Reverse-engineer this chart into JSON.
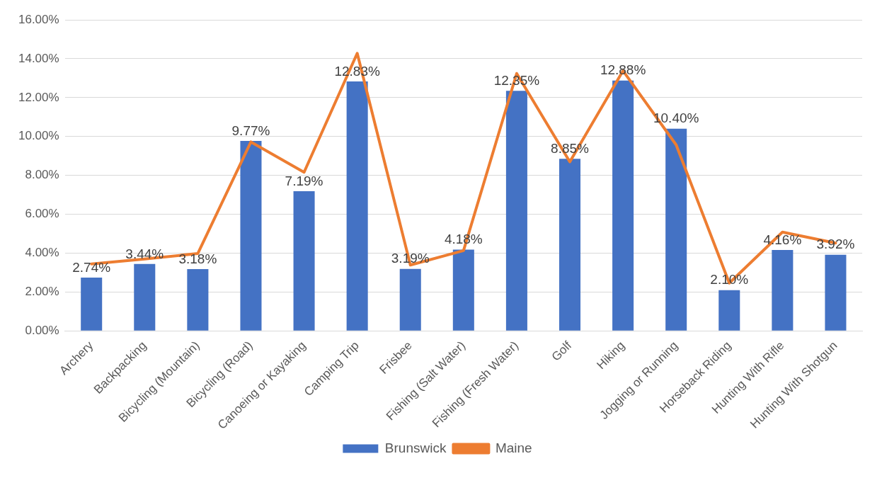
{
  "chart_data": {
    "type": "bar",
    "categories": [
      "Archery",
      "Backpacking",
      "Bicycling (Mountain)",
      "Bicycling (Road)",
      "Canoeing or Kayaking",
      "Camping Trip",
      "Frisbee",
      "Fishing (Salt Water)",
      "Fishing (Fresh Water)",
      "Golf",
      "Hiking",
      "Jogging or Running",
      "Horseback Riding",
      "Hunting With Rifle",
      "Hunting With Shotgun"
    ],
    "series": [
      {
        "name": "Brunswick",
        "type": "bar",
        "color": "#4472c4",
        "values": [
          2.74,
          3.44,
          3.18,
          9.77,
          7.19,
          12.83,
          3.19,
          4.18,
          12.35,
          8.85,
          12.88,
          10.4,
          2.1,
          4.16,
          3.92
        ],
        "value_labels": [
          "2.74%",
          "3.44%",
          "3.18%",
          "9.77%",
          "7.19%",
          "12.83%",
          "3.19%",
          "4.18%",
          "12.35%",
          "8.85%",
          "12.88%",
          "10.40%",
          "2.10%",
          "4.16%",
          "3.92%"
        ]
      },
      {
        "name": "Maine",
        "type": "line",
        "color": "#ed7d31",
        "values": [
          3.44,
          3.7,
          3.98,
          9.72,
          8.16,
          14.28,
          3.39,
          4.13,
          13.24,
          8.7,
          13.38,
          9.57,
          2.46,
          5.08,
          4.52
        ]
      }
    ],
    "ylim": [
      0,
      16
    ],
    "yticks": [
      {
        "value": 0,
        "label": "0.00%"
      },
      {
        "value": 2,
        "label": "2.00%"
      },
      {
        "value": 4,
        "label": "4.00%"
      },
      {
        "value": 6,
        "label": "6.00%"
      },
      {
        "value": 8,
        "label": "8.00%"
      },
      {
        "value": 10,
        "label": "10.00%"
      },
      {
        "value": 12,
        "label": "12.00%"
      },
      {
        "value": 14,
        "label": "14.00%"
      },
      {
        "value": 16,
        "label": "16.00%"
      }
    ],
    "grid": "y",
    "legend": "bottom",
    "marker": "none",
    "line_style": "solid"
  }
}
